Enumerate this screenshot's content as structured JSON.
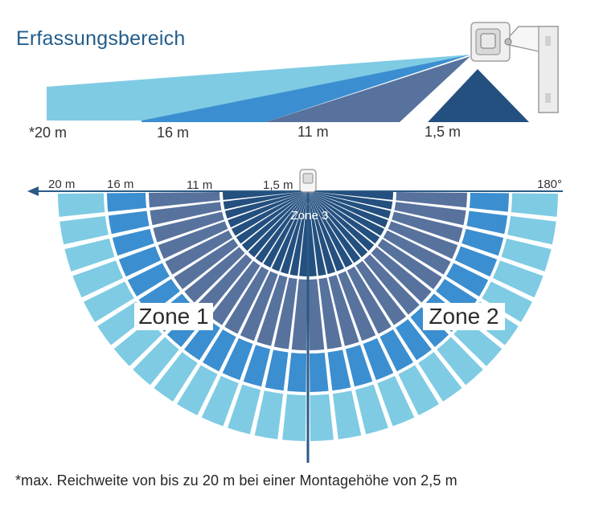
{
  "title": "Erfassungsbereich",
  "side_view": {
    "labels": [
      "*20 m",
      "16 m",
      "11 m",
      "1,5 m"
    ]
  },
  "top_view": {
    "range_labels": [
      "20 m",
      "16 m",
      "11 m",
      "1,5 m"
    ],
    "angle_label": "180°",
    "zones": [
      "Zone 1",
      "Zone 2",
      "Zone 3"
    ]
  },
  "footnote": "*max. Reichweite von bis zu 20 m bei einer Montagehöhe von 2,5 m",
  "colors": {
    "title": "#245d8a",
    "range_20": "#7ecbe3",
    "range_16": "#3b8ed0",
    "range_11": "#58729e",
    "range_1_5": "#24507f",
    "axis": "#2b5a87"
  }
}
